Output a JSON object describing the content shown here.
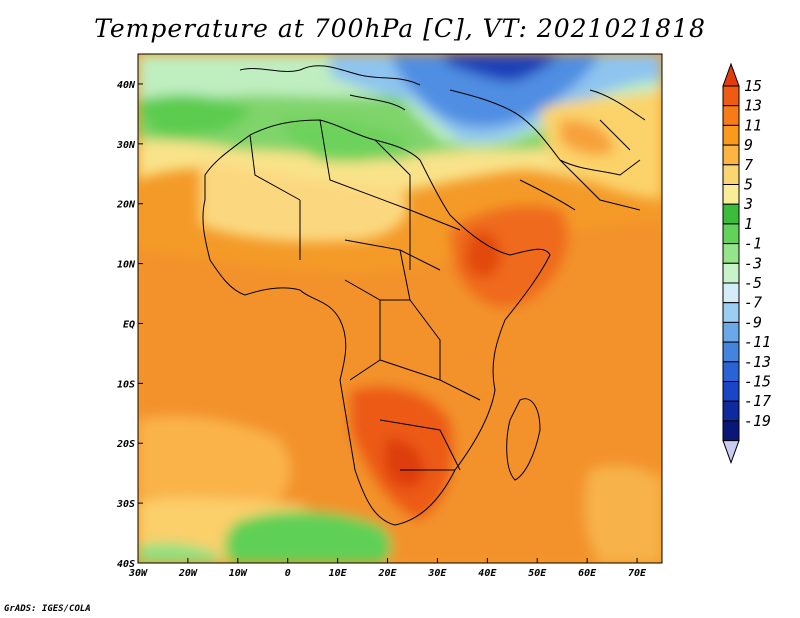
{
  "title": "Temperature at 700hPa [C], VT: 2021021818",
  "credit": "GrADS: IGES/COLA",
  "map": {
    "lon_range": [
      -30,
      75
    ],
    "lat_range": [
      -40,
      45
    ],
    "lon_ticks": [
      "30W",
      "20W",
      "10W",
      "0",
      "10E",
      "20E",
      "30E",
      "40E",
      "50E",
      "60E",
      "70E"
    ],
    "lat_ticks": [
      "40N",
      "30N",
      "20N",
      "10N",
      "EQ",
      "10S",
      "20S",
      "30S",
      "40S"
    ]
  },
  "colorbar": {
    "labels": [
      "15",
      "13",
      "11",
      "9",
      "7",
      "5",
      "3",
      "1",
      "-1",
      "-3",
      "-5",
      "-7",
      "-9",
      "-11",
      "-13",
      "-15",
      "-17",
      "-19"
    ],
    "colors": [
      "#e33b0e",
      "#f05a12",
      "#f77b16",
      "#fa9a1c",
      "#fbb540",
      "#fad672",
      "#f9ed98",
      "#3bbd3b",
      "#62d25a",
      "#94e48a",
      "#c8f2c8",
      "#d4eef9",
      "#9ccdf2",
      "#6ba8ea",
      "#4584de",
      "#2a63d4",
      "#1a45c6",
      "#0f2a9e",
      "#0b1778",
      "#c9cbf0"
    ]
  }
}
